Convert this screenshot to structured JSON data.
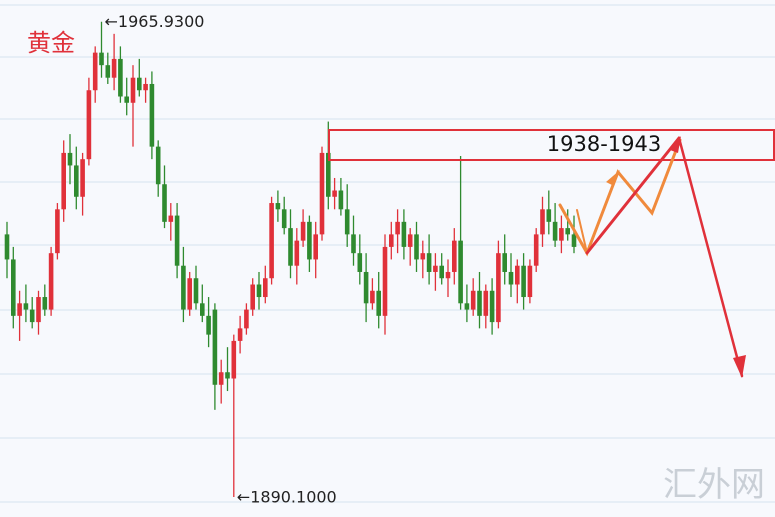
{
  "chart_data": {
    "type": "candlestick",
    "title": "黄金",
    "high_label": "←1965.9300",
    "low_label": "←1890.1000",
    "zone_label": "1938-1943",
    "watermark": "汇外网",
    "up_color": "#e0313a",
    "down_color": "#2f8a2f",
    "ylim": [
      1886.9,
      1969.4
    ],
    "open": [
      1932,
      1928,
      1919,
      1921,
      1920,
      1918,
      1922,
      1920,
      1929,
      1936,
      1945,
      1943,
      1938,
      1944,
      1955,
      1961,
      1959,
      1957,
      1960,
      1954,
      1953,
      1957,
      1955,
      1956,
      1946,
      1940,
      1934,
      1935,
      1927,
      1920,
      1925,
      1921,
      1919,
      1920,
      1908,
      1910,
      1909,
      1915,
      1917,
      1920,
      1924,
      1922,
      1925,
      1937,
      1936,
      1933,
      1927,
      1931,
      1934,
      1928,
      1932,
      1945,
      1938,
      1939,
      1936,
      1932,
      1929,
      1926,
      1921,
      1923,
      1919,
      1930,
      1932,
      1934,
      1930,
      1932,
      1928,
      1929,
      1926,
      1927,
      1925,
      1926,
      1931,
      1921,
      1920,
      1923,
      1919,
      1923,
      1918,
      1929,
      1926,
      1924,
      1927,
      1922,
      1927,
      1932,
      1936,
      1934,
      1931,
      1933,
      1932
    ],
    "high": [
      1934,
      1930,
      1923,
      1924,
      1922,
      1923,
      1924,
      1930,
      1937,
      1947,
      1948,
      1946,
      1945,
      1957,
      1962,
      1965.93,
      1961,
      1964,
      1962,
      1957,
      1959,
      1960,
      1957,
      1958,
      1947,
      1943,
      1937,
      1937,
      1930,
      1926,
      1927,
      1924,
      1922,
      1921,
      1912,
      1914,
      1916,
      1919,
      1921,
      1925,
      1926,
      1927,
      1938,
      1939,
      1938,
      1936,
      1933,
      1936,
      1935,
      1934,
      1946,
      1950,
      1941,
      1941,
      1940,
      1935,
      1932,
      1929,
      1925,
      1926,
      1932,
      1934,
      1936,
      1936,
      1933,
      1934,
      1931,
      1932,
      1929,
      1929,
      1928,
      1933,
      1944.5,
      1924,
      1925,
      1926,
      1924,
      1925,
      1931,
      1932,
      1929,
      1928,
      1929,
      1928,
      1933,
      1938,
      1939,
      1937,
      1935,
      1936,
      1935
    ],
    "low": [
      1925,
      1917,
      1915,
      1918,
      1917,
      1916,
      1919,
      1919,
      1928,
      1934,
      1940,
      1936,
      1935,
      1943,
      1953,
      1957,
      1956,
      1955,
      1953,
      1951,
      1946,
      1954,
      1953,
      1944,
      1938,
      1933,
      1931,
      1925,
      1918,
      1919,
      1920,
      1918,
      1914,
      1904,
      1905,
      1907,
      1890.1,
      1913,
      1916,
      1919,
      1920,
      1921,
      1924,
      1934,
      1932,
      1925,
      1924,
      1930,
      1926,
      1925,
      1931,
      1936,
      1936,
      1935,
      1930,
      1927,
      1924,
      1918,
      1920,
      1917,
      1916,
      1928,
      1929,
      1928,
      1927,
      1926,
      1925,
      1924,
      1923,
      1924,
      1922,
      1924,
      1920,
      1918,
      1919,
      1917,
      1917,
      1916,
      1917,
      1924,
      1922,
      1921,
      1920,
      1921,
      1926,
      1930,
      1932,
      1930,
      1929,
      1931,
      1929
    ],
    "close": [
      1928,
      1919,
      1921,
      1920,
      1918,
      1922,
      1920,
      1929,
      1936,
      1945,
      1943,
      1938,
      1944,
      1955,
      1961,
      1959,
      1957,
      1960,
      1954,
      1953,
      1957,
      1955,
      1956,
      1946,
      1940,
      1934,
      1935,
      1927,
      1920,
      1925,
      1921,
      1919,
      1916,
      1908,
      1910,
      1909,
      1915,
      1917,
      1920,
      1924,
      1922,
      1925,
      1937,
      1936,
      1933,
      1927,
      1931,
      1934,
      1928,
      1932,
      1945,
      1938,
      1939,
      1936,
      1932,
      1929,
      1926,
      1921,
      1923,
      1919,
      1930,
      1932,
      1934,
      1930,
      1932,
      1928,
      1929,
      1926,
      1927,
      1925,
      1926,
      1931,
      1921,
      1920,
      1923,
      1919,
      1923,
      1918,
      1929,
      1926,
      1924,
      1927,
      1922,
      1927,
      1932,
      1936,
      1934,
      1931,
      1933,
      1932,
      1930
    ]
  }
}
